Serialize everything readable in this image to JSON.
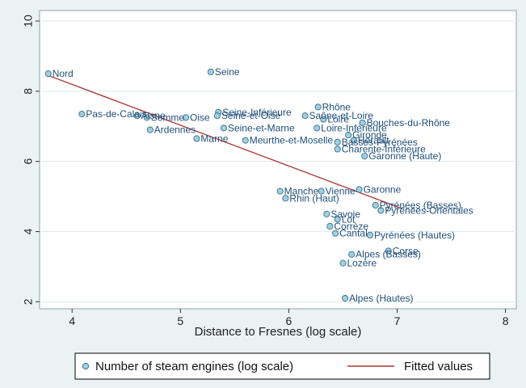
{
  "chart_data": {
    "type": "scatter",
    "xlabel": "Distance to Fresnes (log scale)",
    "ylabel": "",
    "xlim": [
      3.7,
      8.1
    ],
    "ylim": [
      1.8,
      10.3
    ],
    "xticks": [
      4,
      5,
      6,
      7,
      8
    ],
    "yticks": [
      2,
      4,
      6,
      8,
      10
    ],
    "grid": "horizontal",
    "legend_position": "bottom",
    "colors": {
      "background": "#eaf2f3",
      "plot_area": "#ffffff",
      "marker_fill": "#9fd0e2",
      "marker_edge": "#3b6f86",
      "label_text": "#1f4e79",
      "fit_line": "#a8332f",
      "gridline": "#dfe9ec"
    },
    "series": [
      {
        "name": "Number of steam engines (log scale)",
        "points": [
          {
            "label": "Nord",
            "x": 3.78,
            "y": 8.5
          },
          {
            "label": "Seine",
            "x": 5.28,
            "y": 8.55
          },
          {
            "label": "Pas-de-Calais",
            "x": 4.09,
            "y": 7.35
          },
          {
            "label": "Somme",
            "x": 4.69,
            "y": 7.25
          },
          {
            "label": "Aisne",
            "x": 4.6,
            "y": 7.3
          },
          {
            "label": "Oise",
            "x": 5.05,
            "y": 7.25
          },
          {
            "label": "Seine-Inférieure",
            "x": 5.35,
            "y": 7.4
          },
          {
            "label": "Seine-et-Oise",
            "x": 5.34,
            "y": 7.3
          },
          {
            "label": "Ardennes",
            "x": 4.72,
            "y": 6.9
          },
          {
            "label": "Marne",
            "x": 5.15,
            "y": 6.65
          },
          {
            "label": "Seine-et-Marne",
            "x": 5.4,
            "y": 6.95
          },
          {
            "label": "Rhône",
            "x": 6.27,
            "y": 7.55
          },
          {
            "label": "Saône-et-Loire",
            "x": 6.15,
            "y": 7.3
          },
          {
            "label": "Loire",
            "x": 6.32,
            "y": 7.2
          },
          {
            "label": "Bouches-du-Rhône",
            "x": 6.68,
            "y": 7.1
          },
          {
            "label": "Loire-Inférieure",
            "x": 6.26,
            "y": 6.95
          },
          {
            "label": "Gironde",
            "x": 6.55,
            "y": 6.75
          },
          {
            "label": "Hérault",
            "x": 6.6,
            "y": 6.6
          },
          {
            "label": "Meurthe-et-Moselle",
            "x": 5.6,
            "y": 6.6
          },
          {
            "label": "Basses-Pyrénées",
            "x": 6.45,
            "y": 6.55
          },
          {
            "label": "Charente-Inférieure",
            "x": 6.45,
            "y": 6.35
          },
          {
            "label": "Garonne (Haute)",
            "x": 6.7,
            "y": 6.15
          },
          {
            "label": "Vienne",
            "x": 6.3,
            "y": 5.15
          },
          {
            "label": "Garonne",
            "x": 6.65,
            "y": 5.2
          },
          {
            "label": "Manche",
            "x": 5.92,
            "y": 5.15
          },
          {
            "label": "Rhin (Haut)",
            "x": 5.97,
            "y": 4.95
          },
          {
            "label": "Pyrénées (Basses)",
            "x": 6.8,
            "y": 4.75
          },
          {
            "label": "Pyrénées-Orientales",
            "x": 6.85,
            "y": 4.6
          },
          {
            "label": "Savoie",
            "x": 6.35,
            "y": 4.5
          },
          {
            "label": "Lot",
            "x": 6.45,
            "y": 4.35
          },
          {
            "label": "Corrèze",
            "x": 6.38,
            "y": 4.15
          },
          {
            "label": "Cantal",
            "x": 6.43,
            "y": 3.95
          },
          {
            "label": "Pyrénées (Hautes)",
            "x": 6.75,
            "y": 3.9
          },
          {
            "label": "Corse",
            "x": 6.92,
            "y": 3.45
          },
          {
            "label": "Alpes (Basses)",
            "x": 6.58,
            "y": 3.35
          },
          {
            "label": "Lozère",
            "x": 6.5,
            "y": 3.1
          },
          {
            "label": "Alpes (Hautes)",
            "x": 6.52,
            "y": 2.1
          }
        ]
      },
      {
        "name": "Fitted values",
        "type": "line",
        "x": [
          3.78,
          7.05
        ],
        "y": [
          8.45,
          4.65
        ]
      }
    ]
  }
}
